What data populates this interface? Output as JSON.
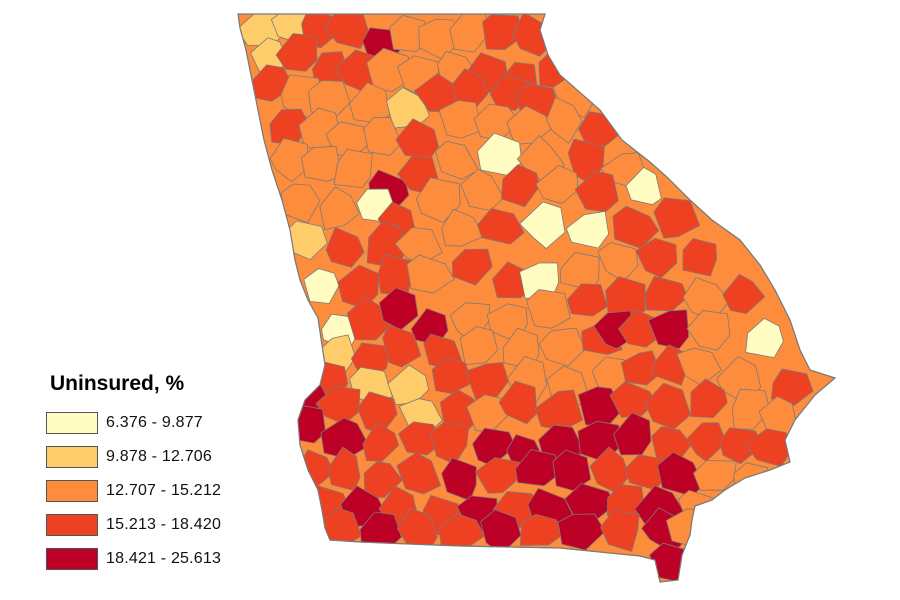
{
  "map": {
    "colors": {
      "c1": "#fffcc2",
      "c2": "#fecd6a",
      "c3": "#fd8d3c",
      "c4": "#ee4121",
      "c5": "#bd0026",
      "border": "#7a7a7a"
    }
  },
  "legend": {
    "title": "Uninsured, %",
    "items": [
      {
        "label": "6.376 - 9.877",
        "color": "#fffcc2"
      },
      {
        "label": "9.878 - 12.706",
        "color": "#fecd6a"
      },
      {
        "label": "12.707 - 15.212",
        "color": "#fd8d3c"
      },
      {
        "label": "15.213 - 18.420",
        "color": "#ee4121"
      },
      {
        "label": "18.421 - 25.613",
        "color": "#bd0026"
      }
    ]
  }
}
